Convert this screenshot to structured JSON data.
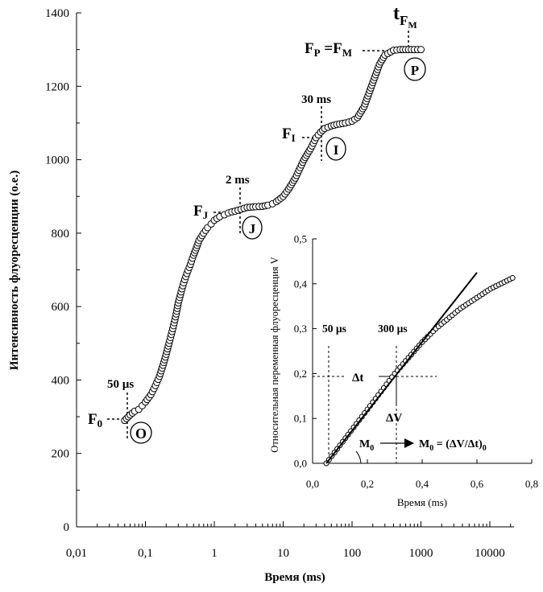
{
  "chart_data": [
    {
      "type": "scatter",
      "xlabel": "Время (ms)",
      "ylabel": "Интенсивность флуоресценции (о.е.)",
      "xscale": "log",
      "xlim": [
        0.01,
        20000
      ],
      "ylim": [
        0,
        1400
      ],
      "x_tick_labels": [
        "0,01",
        "0,1",
        "1",
        "10",
        "100",
        "1000",
        "10000"
      ],
      "y_tick_labels": [
        "0",
        "200",
        "400",
        "600",
        "800",
        "1000",
        "1200",
        "1400"
      ],
      "grid": false,
      "legend": "none",
      "marker": "open-circle",
      "series": [
        {
          "x": [
            0.05,
            0.06,
            0.07,
            0.08,
            0.09,
            0.1,
            0.12,
            0.14,
            0.16,
            0.18,
            0.2,
            0.22,
            0.25,
            0.28,
            0.3,
            0.33,
            0.36,
            0.4,
            0.45,
            0.5,
            0.55,
            0.6,
            0.7,
            0.8,
            0.9,
            1.0,
            1.2,
            1.4,
            1.6,
            1.8,
            2.0,
            3.0,
            4.0,
            5.0,
            6.0,
            7.0,
            8.0,
            10,
            12,
            15,
            20,
            25,
            30,
            35,
            40,
            50,
            60,
            80,
            100,
            120,
            150,
            200,
            250,
            300,
            400,
            500,
            600,
            800,
            1000
          ],
          "y": [
            290,
            305,
            315,
            320,
            330,
            340,
            360,
            385,
            410,
            440,
            470,
            500,
            540,
            580,
            610,
            640,
            665,
            690,
            715,
            740,
            760,
            780,
            800,
            815,
            825,
            835,
            845,
            850,
            855,
            858,
            860,
            870,
            872,
            873,
            876,
            880,
            886,
            900,
            920,
            950,
            1000,
            1030,
            1060,
            1075,
            1085,
            1092,
            1096,
            1100,
            1105,
            1115,
            1145,
            1210,
            1260,
            1285,
            1298,
            1300,
            1300,
            1300,
            1300
          ]
        }
      ],
      "annotations": {
        "f0_label": "F",
        "f0_sub": "0",
        "time_50us": "50 µs",
        "point_o": "O",
        "fj_label": "F",
        "fj_sub": "J",
        "time_2ms": "2 ms",
        "point_j": "J",
        "fi_label": "F",
        "fi_sub": "I",
        "time_30ms": "30 ms",
        "point_i": "I",
        "fp_label": "F",
        "fp_sub": "P",
        "fp_eq": " =F",
        "fm_sub": "M",
        "tfm_t": "t",
        "tfm_f": "F",
        "tfm_m": "M",
        "point_p": "P"
      }
    },
    {
      "type": "scatter",
      "xlabel": "Время (ms)",
      "ylabel": "Относительная переменная флуоресценция V",
      "xlim": [
        0,
        0.8
      ],
      "ylim": [
        0,
        0.5
      ],
      "x_tick_labels": [
        "0,0",
        "0,2",
        "0,4",
        "0,6",
        "0,8"
      ],
      "y_tick_labels": [
        "0,0",
        "0,1",
        "0,2",
        "0,3",
        "0,4",
        "0,5"
      ],
      "grid": false,
      "legend": "none",
      "marker": "open-circle",
      "series": [
        {
          "x": [
            0.05,
            0.06,
            0.07,
            0.08,
            0.09,
            0.1,
            0.11,
            0.12,
            0.13,
            0.14,
            0.15,
            0.16,
            0.17,
            0.18,
            0.19,
            0.2,
            0.21,
            0.22,
            0.23,
            0.24,
            0.25,
            0.26,
            0.27,
            0.28,
            0.29,
            0.3,
            0.31,
            0.32,
            0.33,
            0.34,
            0.35,
            0.36,
            0.37,
            0.38,
            0.39,
            0.4,
            0.41,
            0.42,
            0.43,
            0.44,
            0.45,
            0.46,
            0.47,
            0.48,
            0.49,
            0.5,
            0.51,
            0.52,
            0.53,
            0.54,
            0.55,
            0.56,
            0.57,
            0.58,
            0.59,
            0.6,
            0.61,
            0.62,
            0.63,
            0.64,
            0.65,
            0.66,
            0.67,
            0.68,
            0.69,
            0.7,
            0.71,
            0.72,
            0.73
          ],
          "y": [
            0.0,
            0.008,
            0.016,
            0.024,
            0.032,
            0.04,
            0.048,
            0.056,
            0.064,
            0.072,
            0.08,
            0.088,
            0.096,
            0.104,
            0.112,
            0.12,
            0.128,
            0.136,
            0.144,
            0.152,
            0.16,
            0.168,
            0.176,
            0.184,
            0.192,
            0.2,
            0.207,
            0.214,
            0.221,
            0.228,
            0.235,
            0.242,
            0.249,
            0.256,
            0.263,
            0.27,
            0.276,
            0.282,
            0.288,
            0.294,
            0.3,
            0.305,
            0.31,
            0.315,
            0.32,
            0.325,
            0.33,
            0.335,
            0.34,
            0.345,
            0.349,
            0.353,
            0.357,
            0.361,
            0.365,
            0.369,
            0.373,
            0.377,
            0.381,
            0.385,
            0.389,
            0.392,
            0.395,
            0.398,
            0.401,
            0.404,
            0.407,
            0.41,
            0.413
          ]
        }
      ],
      "tangent_line": {
        "from": [
          0.05,
          0.0
        ],
        "to": [
          0.6,
          0.425
        ]
      },
      "annotations": {
        "time_50us": "50 µs",
        "time_300us": "300 µs",
        "delta_t": "Δt",
        "delta_v": "ΔV",
        "m0_label": "M",
        "m0_sub": "0",
        "m0_formula": "M",
        "m0_formula_sub": "0",
        "m0_formula_eq": " = (ΔV/Δt)",
        "m0_formula_sub2": "0"
      }
    }
  ]
}
